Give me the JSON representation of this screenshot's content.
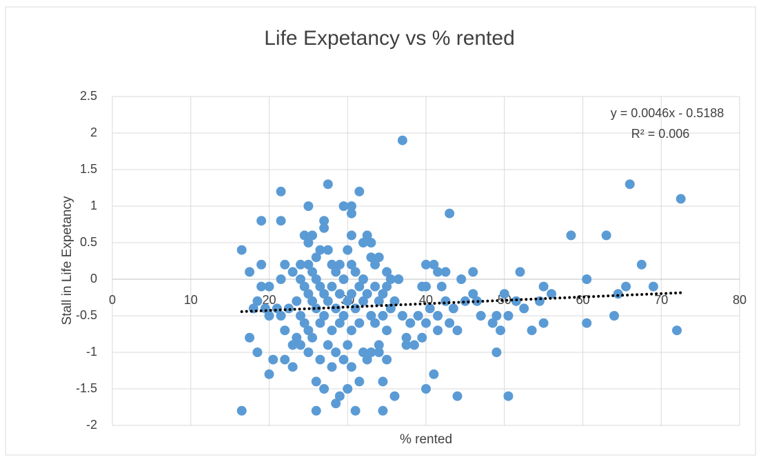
{
  "chart_data": {
    "type": "scatter",
    "title": "Life Expetancy vs % rented",
    "x_label": "% rented",
    "y_label": "Stall in Life Expetancy",
    "xlim": [
      0,
      80
    ],
    "xticks": [
      0,
      10,
      20,
      30,
      40,
      50,
      60,
      70,
      80
    ],
    "ylim": [
      -2,
      2.5
    ],
    "yticks": [
      2.5,
      2,
      1.5,
      1,
      0.5,
      0,
      -0.5,
      -1,
      -1.5,
      -2
    ],
    "grid": true,
    "annotations": [
      "y = 0.0046x - 0.5188",
      "R² = 0.006"
    ],
    "trendline": {
      "slope": 0.0046,
      "intercept": -0.5188,
      "color": "#000000"
    },
    "series": [
      {
        "color": "#5b9bd5",
        "x": [
          16.5,
          16.5,
          17.5,
          17.5,
          18,
          18.5,
          18.5,
          19,
          19,
          19,
          19.5,
          20,
          20,
          20,
          20.5,
          21,
          21.5,
          21.5,
          21.5,
          21.5,
          22,
          22,
          22,
          22.5,
          23,
          23,
          23,
          23.5,
          23.5,
          24,
          24,
          24,
          24,
          24.5,
          24.5,
          24.5,
          25,
          25,
          25,
          25,
          25,
          25,
          25.5,
          25.5,
          25.5,
          25.5,
          26,
          26,
          26,
          26,
          26,
          26.5,
          26.5,
          26.5,
          26.5,
          27,
          27,
          27,
          27,
          27,
          27.5,
          27.5,
          27.5,
          27.5,
          28,
          28,
          28,
          28,
          28.5,
          28.5,
          28.5,
          28.5,
          29,
          29,
          29,
          29,
          29.5,
          29.5,
          29.5,
          29.5,
          30,
          30,
          30,
          30,
          30.5,
          30.5,
          30.5,
          30.5,
          30.5,
          30.5,
          30.5,
          31,
          31,
          31,
          31.5,
          31.5,
          31.5,
          31.5,
          32,
          32,
          32,
          32,
          32.5,
          32.5,
          32.5,
          33,
          33,
          33,
          33,
          33.5,
          33.5,
          33.5,
          34,
          34,
          34,
          34,
          34.5,
          34.5,
          34.5,
          34.5,
          35,
          35,
          35,
          35,
          35.5,
          35.5,
          36,
          36,
          36.5,
          37,
          37,
          37.5,
          37.5,
          38,
          38.5,
          39,
          39.5,
          39.5,
          40,
          40,
          40,
          40,
          40.5,
          41,
          41,
          41.5,
          41.5,
          41.5,
          42,
          42.5,
          42.5,
          43,
          43,
          43.5,
          44,
          44,
          44.5,
          45,
          46,
          46,
          46.5,
          47,
          48.5,
          49,
          49,
          49.5,
          50,
          50.5,
          50.5,
          51.5,
          52,
          52.5,
          53.5,
          54.5,
          55,
          55,
          56,
          58.5,
          60.5,
          60.5,
          63,
          64,
          64.5,
          65.5,
          66,
          67.5,
          69,
          72,
          72.5
        ],
        "y": [
          0.4,
          -1.8,
          0.1,
          -0.8,
          -0.4,
          -0.3,
          -1.0,
          0.8,
          0.2,
          -0.1,
          -0.4,
          -0.1,
          -0.5,
          -1.3,
          -1.1,
          -0.4,
          1.2,
          0.8,
          0.0,
          -0.5,
          0.2,
          -0.7,
          -1.1,
          -0.4,
          0.1,
          -0.9,
          -1.2,
          -0.3,
          -0.8,
          0.2,
          0.0,
          -0.5,
          -0.9,
          0.6,
          -0.1,
          -0.6,
          1.0,
          0.5,
          0.2,
          -0.2,
          -0.7,
          -1.0,
          0.6,
          0.1,
          -0.3,
          -0.8,
          0.3,
          0.0,
          -0.4,
          -1.4,
          -1.8,
          0.4,
          -0.1,
          -0.6,
          -1.1,
          0.8,
          0.7,
          -0.2,
          -0.5,
          -1.5,
          1.3,
          0.4,
          -0.3,
          -0.9,
          0.2,
          -0.1,
          -0.7,
          -1.2,
          0.1,
          -0.4,
          -1.7,
          -1.0,
          0.2,
          -0.2,
          -0.6,
          -1.6,
          1.0,
          0.0,
          -0.5,
          -1.1,
          0.4,
          -0.3,
          -0.9,
          -1.5,
          1.0,
          0.9,
          0.6,
          0.2,
          -0.2,
          -0.7,
          -1.2,
          0.1,
          -0.4,
          -1.8,
          1.2,
          -0.1,
          -0.6,
          -1.4,
          0.5,
          0.0,
          -0.3,
          -1.0,
          0.6,
          -0.2,
          -1.1,
          0.5,
          0.3,
          -0.5,
          -1.0,
          0.2,
          -0.1,
          -0.6,
          0.3,
          -0.3,
          -0.9,
          -1.0,
          -0.2,
          -0.5,
          -1.4,
          -1.8,
          0.1,
          -0.1,
          -0.7,
          -1.1,
          0.0,
          -0.4,
          -0.3,
          -1.6,
          0.0,
          1.9,
          -0.5,
          -0.8,
          -0.9,
          -0.6,
          -0.9,
          -0.5,
          -0.1,
          -0.8,
          0.2,
          -0.1,
          -0.6,
          -1.5,
          -0.4,
          0.2,
          -1.3,
          0.1,
          -0.5,
          -0.7,
          -0.1,
          0.1,
          -0.3,
          0.9,
          -0.6,
          -0.4,
          -0.7,
          -1.6,
          0.0,
          -0.3,
          0.1,
          -0.2,
          -0.3,
          -0.5,
          -0.6,
          -0.5,
          -1.0,
          -0.7,
          -0.2,
          -0.5,
          -1.6,
          -0.3,
          0.1,
          -0.4,
          -0.7,
          -0.3,
          -0.1,
          -0.6,
          -0.2,
          0.6,
          -0.6,
          0.0,
          0.6,
          -0.5,
          -0.2,
          -0.1,
          1.3,
          0.2,
          -0.1,
          -0.7,
          1.1
        ]
      }
    ]
  }
}
